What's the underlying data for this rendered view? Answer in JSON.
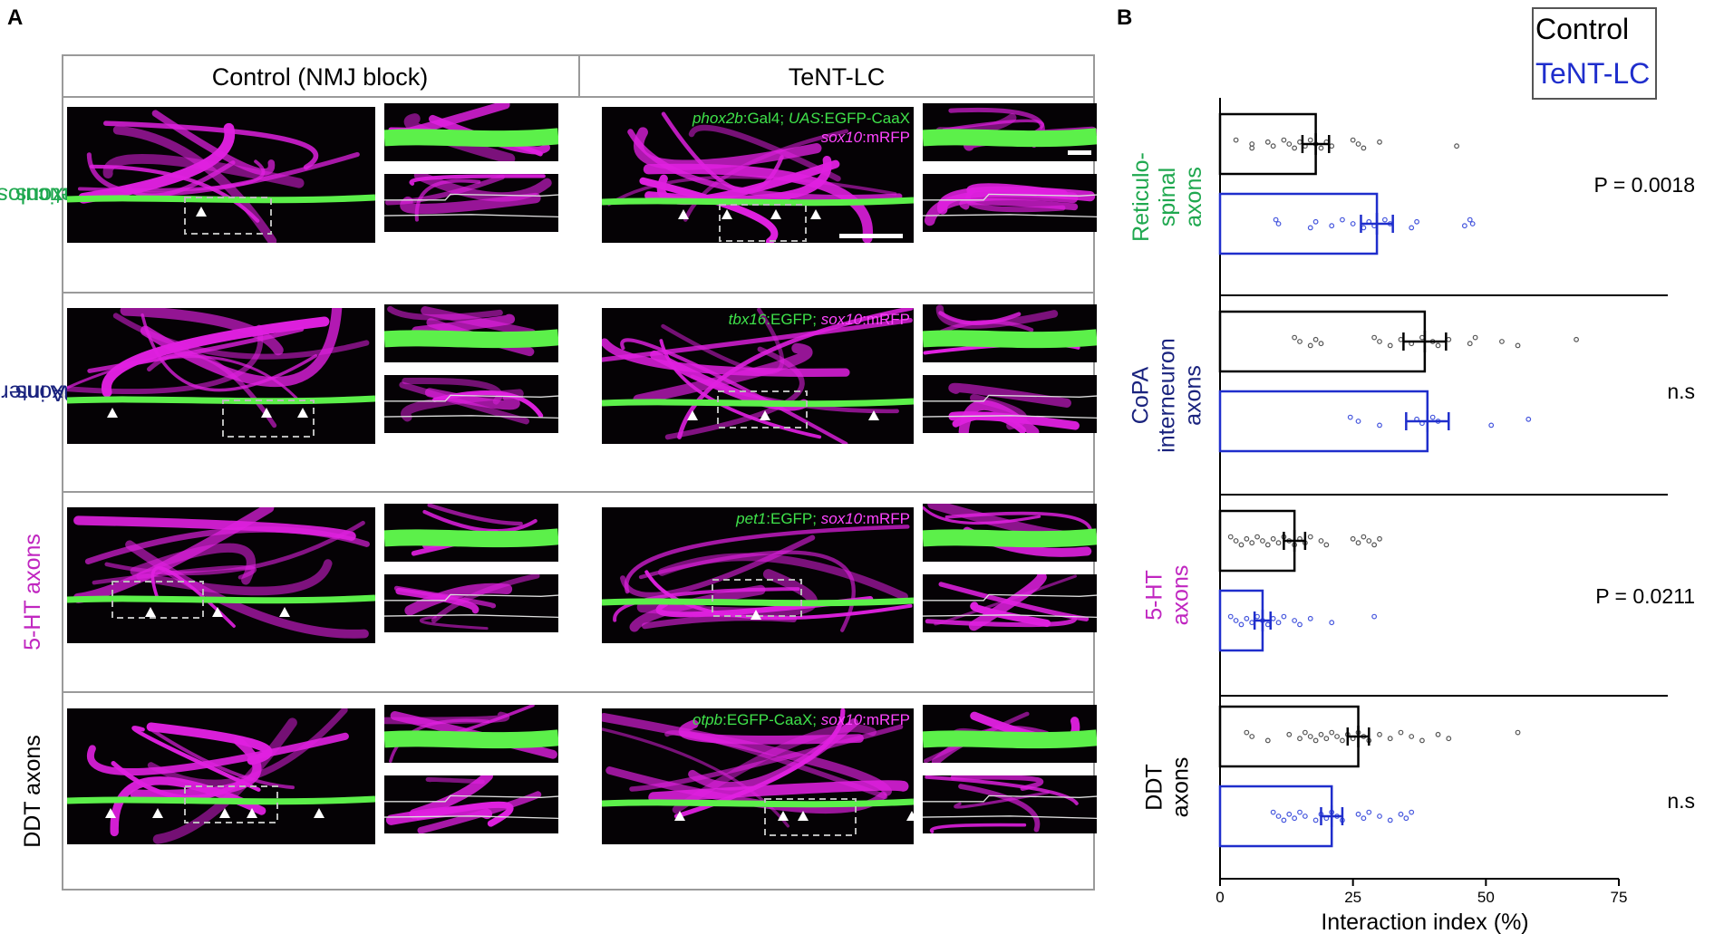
{
  "figure": {
    "panel_a_label": "A",
    "panel_b_label": "B",
    "columns": [
      "Control (NMJ block)",
      "TeNT-LC"
    ],
    "rows": [
      {
        "label_line1": "Reticulospinal",
        "label_line2": "axons",
        "label_color": "#1fa84f",
        "genotype": [
          {
            "segments": [
              {
                "text": "phox2b",
                "italic": true,
                "color": "#3fe24a"
              },
              {
                "text": ":Gal4; ",
                "italic": false,
                "color": "#3fe24a"
              },
              {
                "text": "UAS",
                "italic": true,
                "color": "#3fe24a"
              },
              {
                "text": ":EGFP-CaaX",
                "italic": false,
                "color": "#3fe24a"
              }
            ]
          },
          {
            "segments": [
              {
                "text": "sox10",
                "italic": true,
                "color": "#ff45ff"
              },
              {
                "text": ":mRFP",
                "italic": false,
                "color": "#ff45ff"
              }
            ]
          }
        ]
      },
      {
        "label_line1": "CoPA interneuron",
        "label_line2": "axons",
        "label_color": "#1a237e",
        "genotype": [
          {
            "segments": [
              {
                "text": "tbx16",
                "italic": true,
                "color": "#3fe24a"
              },
              {
                "text": ":EGFP; ",
                "italic": false,
                "color": "#3fe24a"
              },
              {
                "text": "sox10",
                "italic": true,
                "color": "#ff45ff"
              },
              {
                "text": ":mRFP",
                "italic": false,
                "color": "#ff45ff"
              }
            ]
          }
        ]
      },
      {
        "label_line1": "5-HT axons",
        "label_line2": "",
        "label_color": "#c026c0",
        "genotype": [
          {
            "segments": [
              {
                "text": "pet1",
                "italic": true,
                "color": "#3fe24a"
              },
              {
                "text": ":EGFP; ",
                "italic": false,
                "color": "#3fe24a"
              },
              {
                "text": "sox10",
                "italic": true,
                "color": "#ff45ff"
              },
              {
                "text": ":mRFP",
                "italic": false,
                "color": "#ff45ff"
              }
            ]
          }
        ]
      },
      {
        "label_line1": "DDT axons",
        "label_line2": "",
        "label_color": "#000000",
        "genotype": [
          {
            "segments": [
              {
                "text": "otpb",
                "italic": true,
                "color": "#3fe24a"
              },
              {
                "text": ":EGFP-CaaX; ",
                "italic": false,
                "color": "#3fe24a"
              },
              {
                "text": "sox10",
                "italic": true,
                "color": "#ff45ff"
              },
              {
                "text": ":mRFP",
                "italic": false,
                "color": "#ff45ff"
              }
            ]
          }
        ]
      }
    ]
  },
  "chart_data": {
    "type": "bar",
    "orientation": "horizontal",
    "xlabel": "Interaction index (%)",
    "xlim": [
      0,
      75
    ],
    "xticks": [
      0,
      25,
      50,
      75
    ],
    "categories": [
      {
        "line1": "Reticulo-",
        "line2": "spinal",
        "line3": "axons",
        "color": "#1fa84f"
      },
      {
        "line1": "CoPA",
        "line2": "interneuron",
        "line3": "axons",
        "color": "#1a237e"
      },
      {
        "line1": "5-HT",
        "line2": "axons",
        "line3": "",
        "color": "#c026c0"
      },
      {
        "line1": "DDT",
        "line2": "axons",
        "line3": "",
        "color": "#000000"
      }
    ],
    "series": [
      {
        "name": "Control",
        "color": "#000000",
        "means": [
          18,
          38.5,
          14,
          26
        ],
        "errors": [
          2.5,
          4,
          2,
          2
        ],
        "points": [
          [
            3,
            6,
            6,
            9,
            10,
            12,
            13,
            14,
            15,
            16,
            17,
            18,
            19,
            20,
            21,
            25,
            26,
            27,
            30,
            44.5
          ],
          [
            14,
            15,
            17,
            18,
            19,
            29,
            30,
            32,
            34,
            36,
            38,
            40,
            41,
            43,
            47,
            48,
            53,
            56,
            67
          ],
          [
            2,
            3,
            4,
            5,
            6,
            7,
            8,
            9,
            10,
            11,
            12,
            13,
            14,
            15,
            16,
            17,
            19,
            20,
            25,
            26,
            27,
            28,
            29,
            30
          ],
          [
            5,
            6,
            9,
            13,
            15,
            16,
            17,
            18,
            19,
            20,
            21,
            22,
            23,
            24,
            25,
            26,
            27,
            28,
            30,
            32,
            34,
            36,
            38,
            41,
            43,
            56
          ]
        ]
      },
      {
        "name": "TeNT-LC",
        "color": "#1f2ecc",
        "means": [
          29.5,
          39,
          8,
          21
        ],
        "errors": [
          3,
          4,
          1.5,
          2
        ],
        "points": [
          [
            10.5,
            11,
            17,
            18,
            21,
            23,
            25,
            27,
            28,
            29,
            31,
            32,
            36,
            37,
            46,
            47,
            47.5
          ],
          [
            24.5,
            26,
            30,
            37,
            38,
            40,
            41,
            51,
            58
          ],
          [
            2,
            3,
            4,
            5,
            6,
            7,
            8,
            9,
            10,
            11,
            12,
            14,
            15,
            17,
            21,
            29
          ],
          [
            10,
            11,
            12,
            13,
            14,
            15,
            16,
            18,
            19,
            20,
            21,
            22,
            23,
            26,
            27,
            28,
            30,
            32,
            34,
            35,
            36
          ]
        ]
      }
    ],
    "pvalues": [
      "P = 0.0018",
      "n.s",
      "P = 0.0211",
      "n.s"
    ],
    "legend": [
      "Control",
      "TeNT-LC"
    ],
    "legend_position": "top-right"
  }
}
